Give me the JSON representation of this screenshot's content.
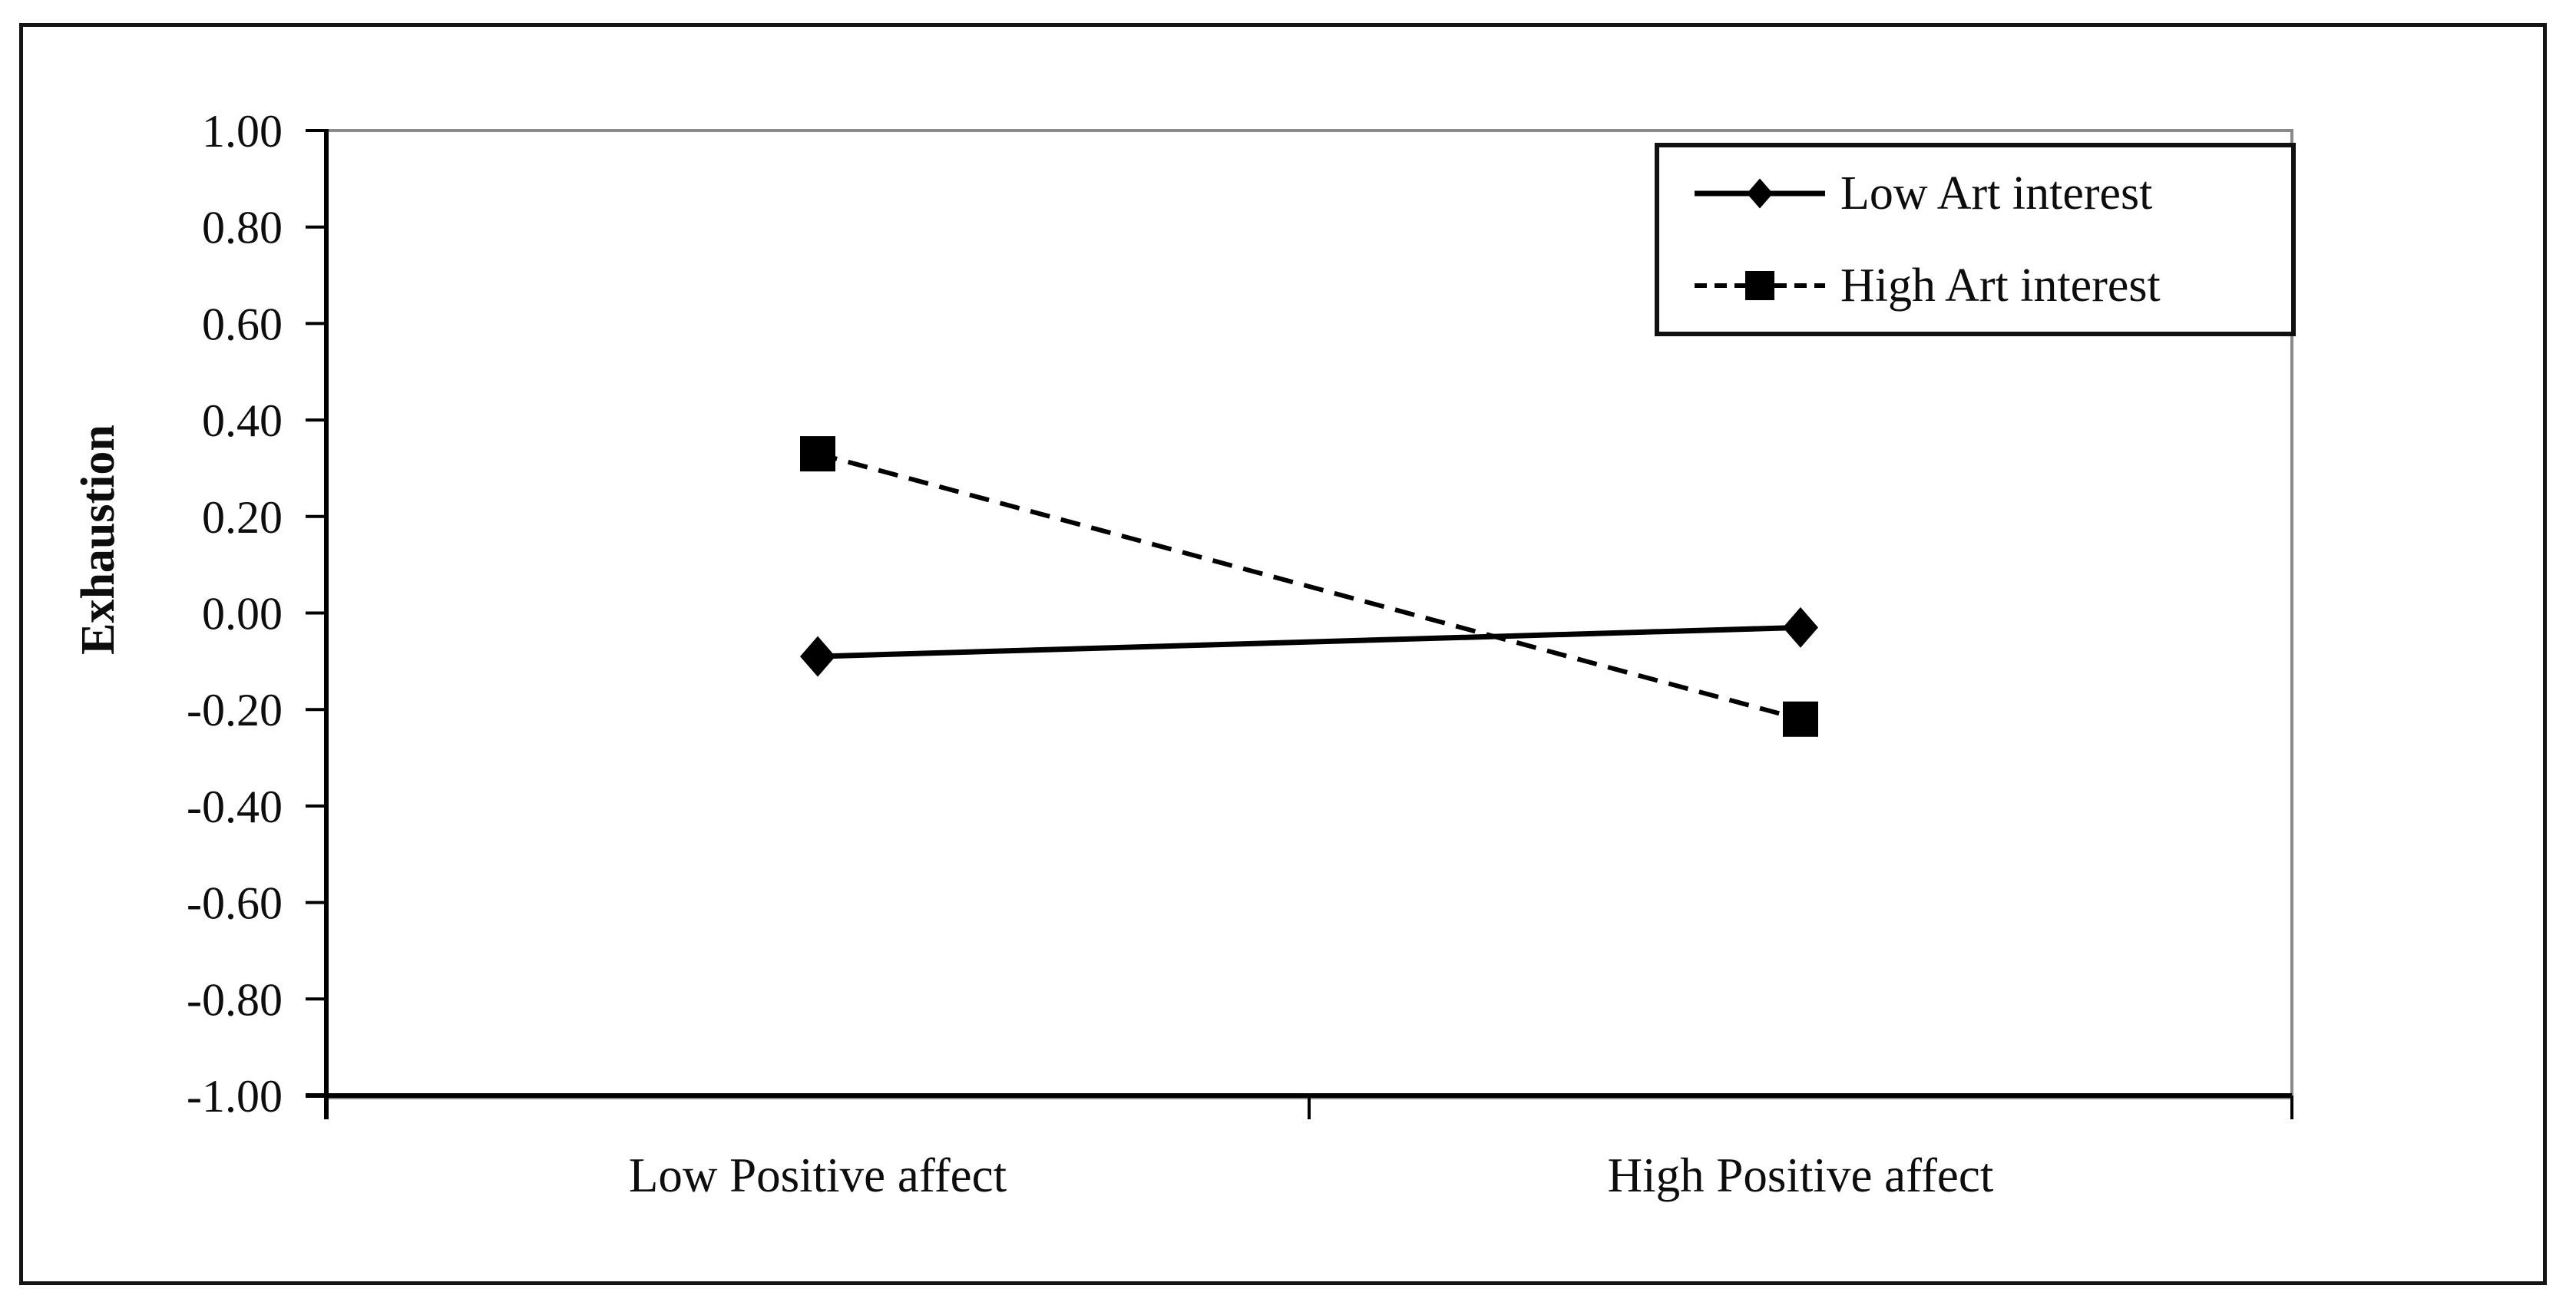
{
  "figure": {
    "background": "#ffffff",
    "border_color": "#141414"
  },
  "chart_data": {
    "type": "line",
    "title": "",
    "xlabel": "",
    "ylabel": "Exhaustion",
    "categories": [
      "Low Positive affect",
      "High Positive affect"
    ],
    "series": [
      {
        "name": "Low Art interest",
        "values": [
          -0.09,
          -0.03
        ],
        "marker": "diamond",
        "line_style": "solid",
        "color": "#000000"
      },
      {
        "name": "High Art interest",
        "values": [
          0.33,
          -0.22
        ],
        "marker": "square",
        "line_style": "dashed",
        "color": "#000000"
      }
    ],
    "ylim": [
      -1.0,
      1.0
    ],
    "ytick_step": 0.2,
    "ytick_labels": [
      "1.00",
      "0.80",
      "0.60",
      "0.40",
      "0.20",
      "0.00",
      "-0.20",
      "-0.40",
      "-0.60",
      "-0.80",
      "-1.00"
    ],
    "grid": false,
    "legend_position": "top-right",
    "plot_border_color": "#8a8a8a",
    "axis_color": "#000000",
    "text_color": "#0d0d0d"
  }
}
